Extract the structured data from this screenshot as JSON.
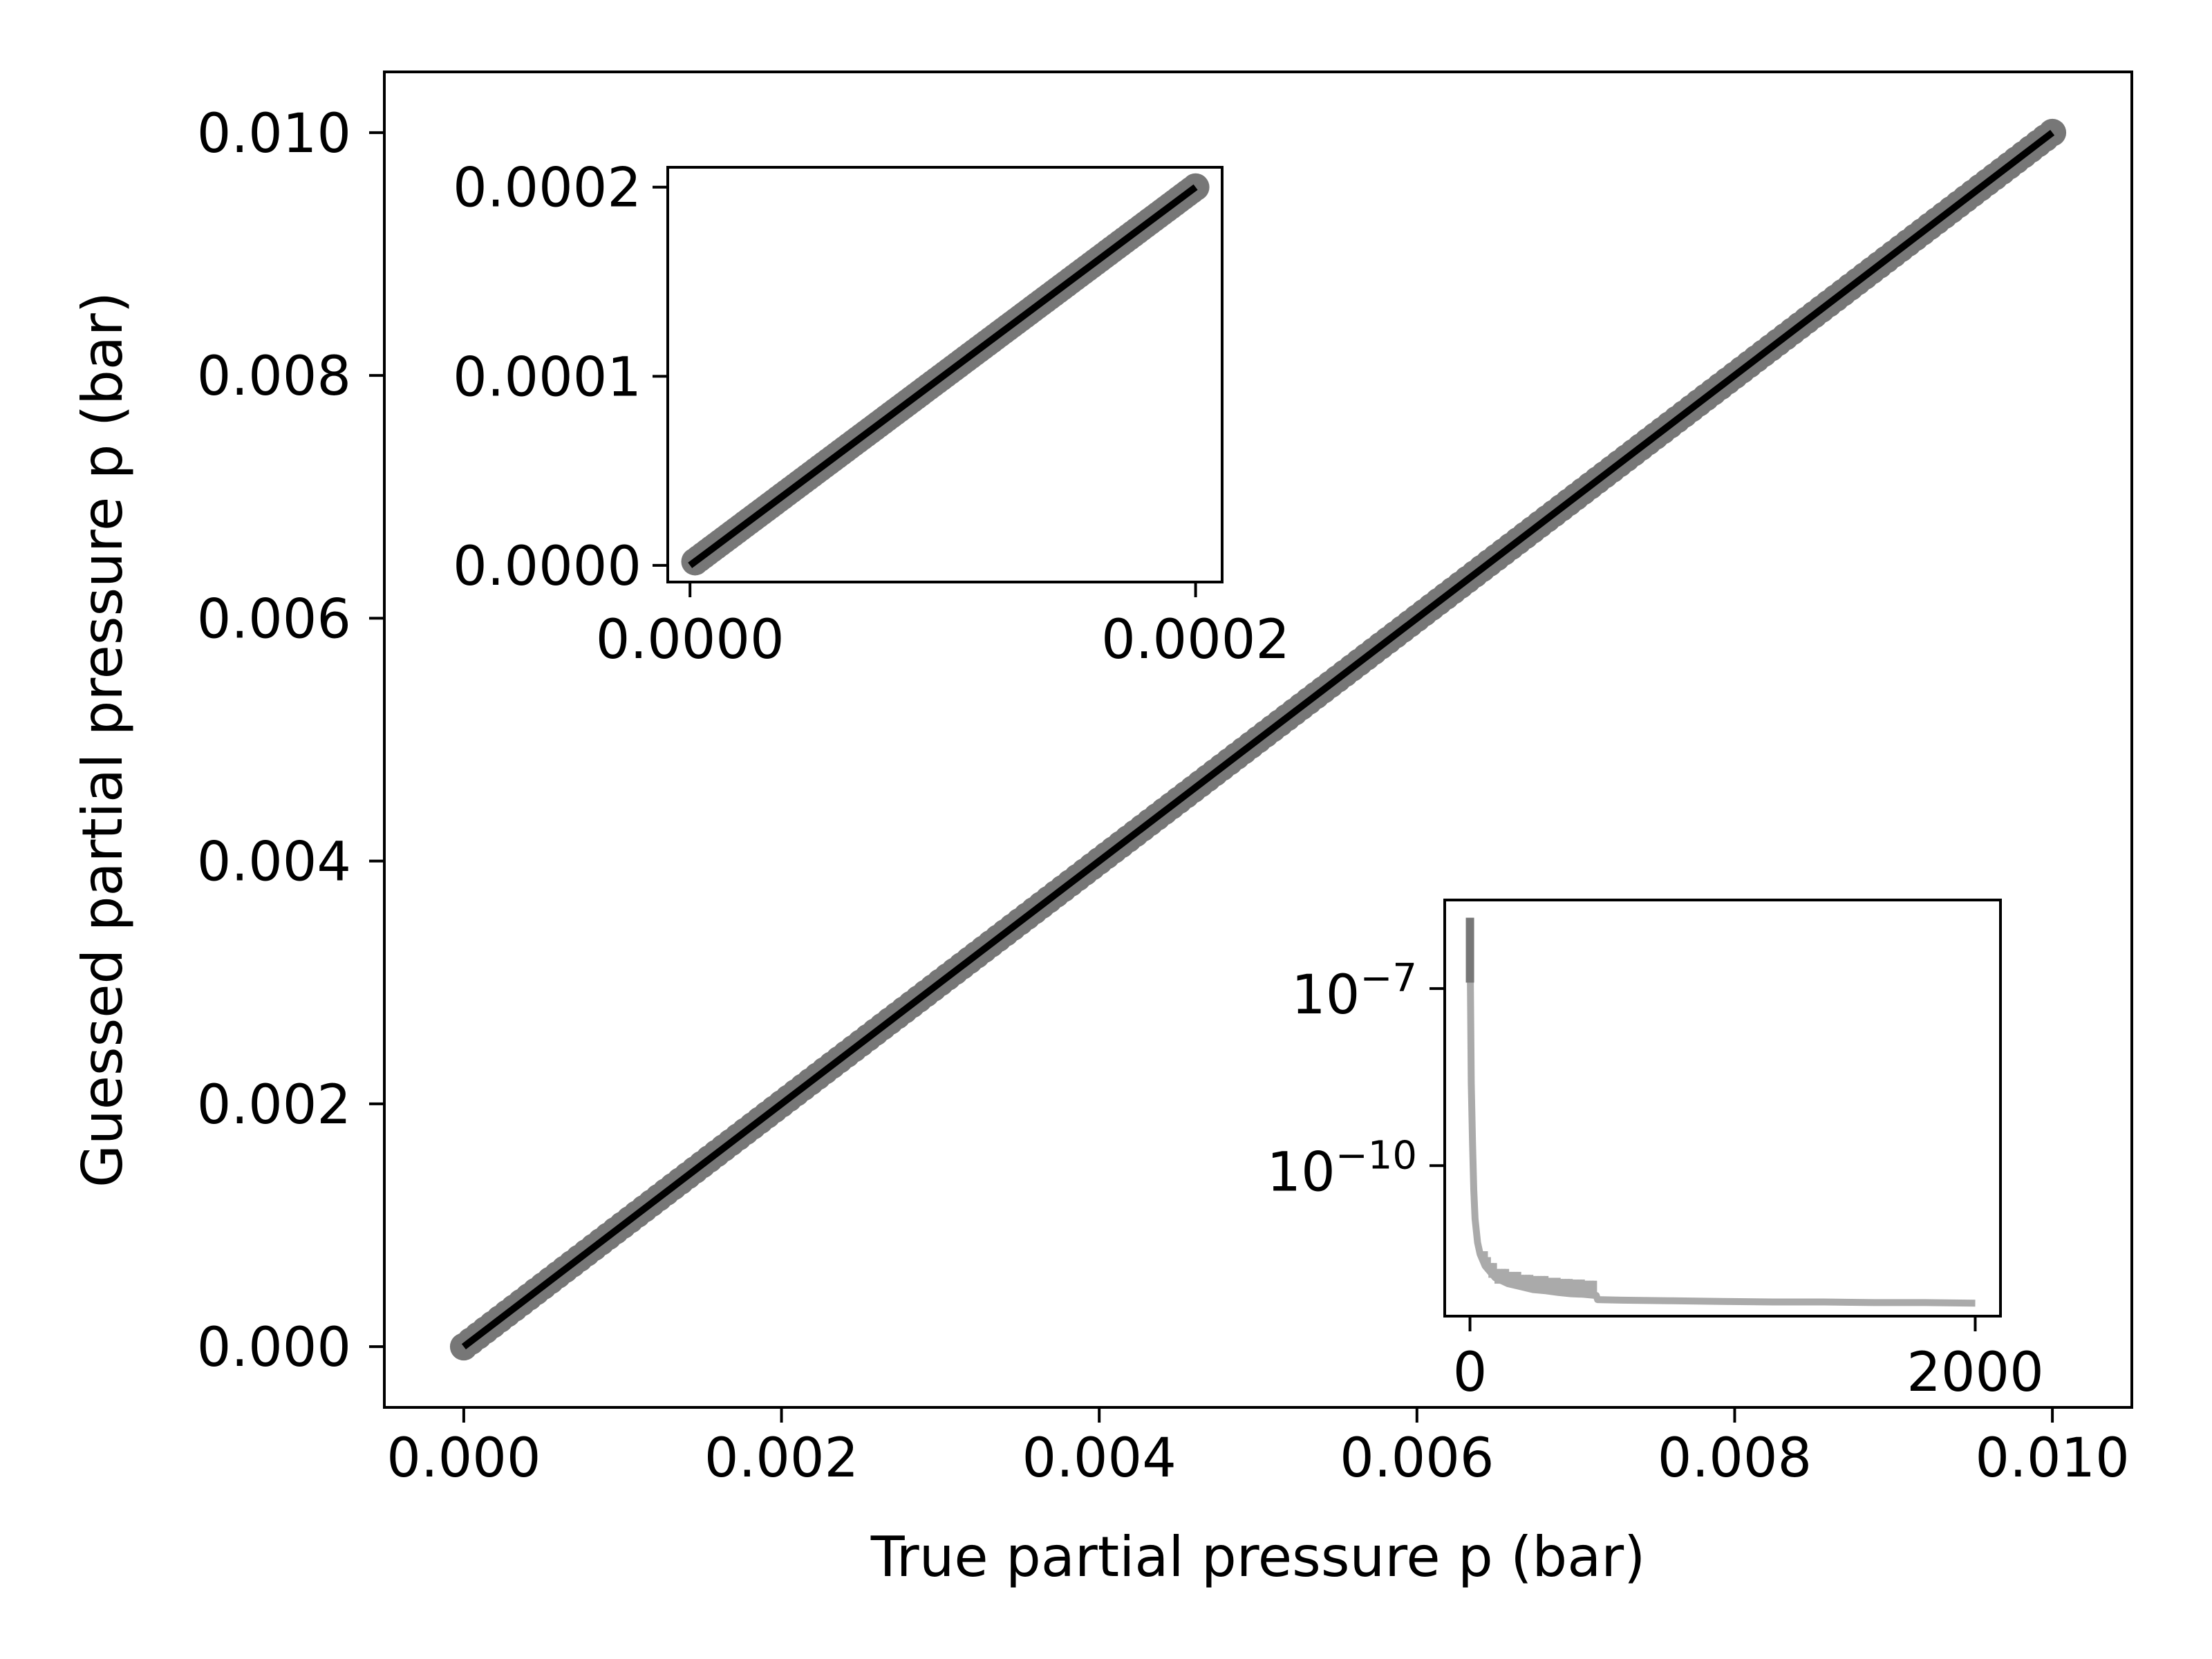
{
  "chart_data": [
    {
      "id": "main",
      "type": "scatter",
      "title": "",
      "xlabel": "True partial pressure p (bar)",
      "ylabel": "Guessed partial pressure p (bar)",
      "xlim": [
        -0.0005,
        0.0105
      ],
      "ylim": [
        -0.0005,
        0.0105
      ],
      "xticks": [
        0.0,
        0.002,
        0.004,
        0.006,
        0.008,
        0.01
      ],
      "xtick_labels": [
        "0.000",
        "0.002",
        "0.004",
        "0.006",
        "0.008",
        "0.010"
      ],
      "yticks": [
        0.0,
        0.002,
        0.004,
        0.006,
        0.008,
        0.01
      ],
      "ytick_labels": [
        "0.000",
        "0.002",
        "0.004",
        "0.006",
        "0.008",
        "0.010"
      ],
      "grid": false,
      "series": [
        {
          "kind": "points",
          "color": "#777777",
          "x_range": [
            0.0,
            0.01
          ],
          "description_relation": "y = x"
        },
        {
          "kind": "line",
          "color": "#000000",
          "x": [
            0.0,
            0.01
          ],
          "y": [
            0.0,
            0.01
          ]
        }
      ]
    },
    {
      "id": "inset-top-left",
      "type": "scatter",
      "title": "",
      "xlabel": "",
      "ylabel": "",
      "xlim": [
        -8.8e-06,
        0.0002105
      ],
      "ylim": [
        -8.8e-06,
        0.0002105
      ],
      "xticks": [
        0.0,
        0.0002
      ],
      "xtick_labels": [
        "0.0000",
        "0.0002"
      ],
      "yticks": [
        0.0,
        0.0001,
        0.0002
      ],
      "ytick_labels": [
        "0.0000",
        "0.0001",
        "0.0002"
      ],
      "grid": false,
      "series": [
        {
          "kind": "points",
          "color": "#777777",
          "x_range": [
            2e-06,
            0.0002
          ],
          "description_relation": "y = x"
        },
        {
          "kind": "line",
          "color": "#000000",
          "x": [
            0.0,
            0.0002
          ],
          "y": [
            0.0,
            0.0002
          ]
        }
      ]
    },
    {
      "id": "inset-bottom-right",
      "type": "line",
      "title": "",
      "xlabel": "",
      "ylabel": "",
      "yscale": "log",
      "xlim": [
        -100,
        2100
      ],
      "ylim_log10": [
        -12.55,
        -5.5
      ],
      "xticks": [
        0,
        2000
      ],
      "xtick_labels": [
        "0",
        "2000"
      ],
      "yticks_log10": [
        -7,
        -10
      ],
      "ytick_labels": [
        {
          "base": "10",
          "exp": "−7"
        },
        {
          "base": "10",
          "exp": "−10"
        }
      ],
      "grid": false,
      "series": [
        {
          "kind": "line",
          "color": "#aaaaaa",
          "x": [
            0,
            5,
            10,
            15,
            20,
            30,
            40,
            60,
            80,
            100,
            150,
            200,
            250,
            300,
            350,
            400,
            450,
            500,
            505,
            600,
            800,
            1000,
            1200,
            1400,
            1600,
            1800,
            2000
          ],
          "log10_y": [
            -6.0,
            -8.6,
            -9.6,
            -10.4,
            -10.9,
            -11.3,
            -11.5,
            -11.7,
            -11.8,
            -11.9,
            -12.0,
            -12.05,
            -12.1,
            -12.12,
            -12.15,
            -12.17,
            -12.18,
            -12.2,
            -12.27,
            -12.28,
            -12.29,
            -12.3,
            -12.31,
            -12.31,
            -12.32,
            -12.32,
            -12.33
          ]
        },
        {
          "kind": "segment",
          "color": "#777777",
          "x": [
            0,
            0
          ],
          "log10_y": [
            -5.8,
            -6.9
          ]
        }
      ]
    }
  ]
}
